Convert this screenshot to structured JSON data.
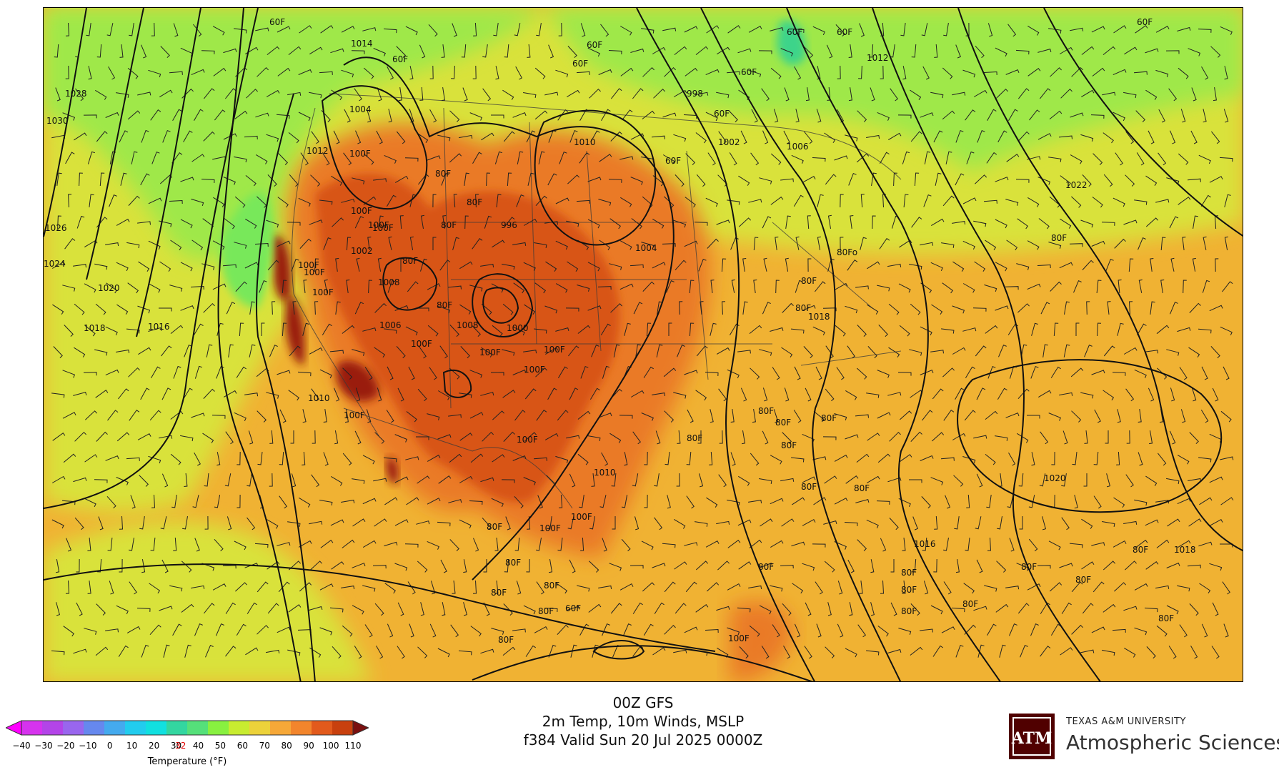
{
  "title": {
    "model": "00Z GFS",
    "product": "2m Temp, 10m Winds, MSLP",
    "valid": "f384 Valid Sun 20 Jul 2025 0000Z"
  },
  "colorbar": {
    "title": "Temperature (°F)",
    "ticks": [
      "−40",
      "−30",
      "−20",
      "−10",
      "0",
      "10",
      "20",
      "30",
      "32",
      "40",
      "50",
      "60",
      "70",
      "80",
      "90",
      "100",
      "110"
    ],
    "freezing_tick": "32",
    "colors": [
      "#ff00ff",
      "#d633ee",
      "#b344e8",
      "#9966ee",
      "#6688ee",
      "#44aaee",
      "#22ccee",
      "#11e0e0",
      "#33d6a0",
      "#55e07a",
      "#88f040",
      "#c8ec30",
      "#ecd23a",
      "#f6a838",
      "#f2852c",
      "#e25a1c",
      "#c8400e",
      "#7a1010"
    ]
  },
  "colors": {
    "ocean_cool": "#9fe84a",
    "ocean_mild": "#d9e23a",
    "ocean_warm": "#f0b233",
    "land_hot": "#ea7a28",
    "land_very_hot": "#d85418",
    "land_extreme": "#9a1e10",
    "green_north": "#78e85a",
    "teal_patch": "#3ed48a"
  },
  "isobar_labels": [
    "1014",
    "1028",
    "1030",
    "1026",
    "1024",
    "1020",
    "1018",
    "1016",
    "1010",
    "1012",
    "1004",
    "1002",
    "1008",
    "1006",
    "1000",
    "996",
    "998",
    "1010",
    "1018",
    "1022",
    "1020",
    "1016",
    "1018",
    "1002",
    "1006",
    "1004",
    "1008",
    "1012",
    "1010"
  ],
  "temp_labels": [
    "60F",
    "60F",
    "60F",
    "60F",
    "60F",
    "60F",
    "60F",
    "60F",
    "60F",
    "60F",
    "60F",
    "80F",
    "80F",
    "80F",
    "80F",
    "80F",
    "80F",
    "80F",
    "80F",
    "80F",
    "80F",
    "80F",
    "80F",
    "80F",
    "80F",
    "80F",
    "80F",
    "80F",
    "80F",
    "80F",
    "80F",
    "80F",
    "80F",
    "80F",
    "80F",
    "80F",
    "80F",
    "80F",
    "80F",
    "80F",
    "80Fo",
    "80F",
    "100F",
    "100F",
    "100F",
    "100F",
    "100F",
    "100F",
    "100F",
    "100F",
    "100F",
    "100F",
    "100F",
    "100F",
    "100F",
    "100F",
    "100F",
    "100F"
  ],
  "logo": {
    "university": "TEXAS A&M UNIVERSITY",
    "department": "Atmospheric Sciences",
    "mark": "ATM"
  }
}
